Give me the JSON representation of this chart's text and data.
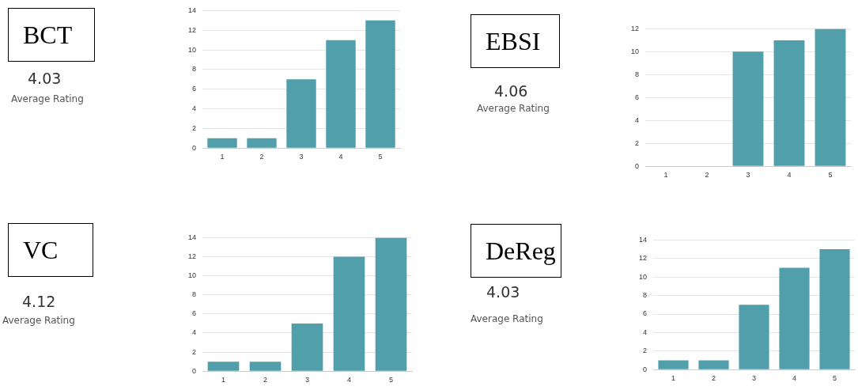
{
  "chart_data": [
    {
      "type": "bar",
      "title": "BCT",
      "annotations": [
        "4.03",
        "Average Rating"
      ],
      "categories": [
        "1",
        "2",
        "3",
        "4",
        "5"
      ],
      "values": [
        1,
        1,
        7,
        11,
        13
      ],
      "color": "#519fab",
      "ylim": [
        0,
        14
      ],
      "yticks": [
        0,
        2,
        4,
        6,
        8,
        10,
        12,
        14
      ],
      "grid": "y"
    },
    {
      "type": "bar",
      "title": "EBSI",
      "annotations": [
        "4.06",
        "Average Rating"
      ],
      "categories": [
        "1",
        "2",
        "3",
        "4",
        "5"
      ],
      "values": [
        0,
        0,
        10,
        11,
        12
      ],
      "color": "#519fab",
      "ylim": [
        0,
        12
      ],
      "yticks": [
        0,
        2,
        4,
        6,
        8,
        10,
        12
      ],
      "grid": "y"
    },
    {
      "type": "bar",
      "title": "VC",
      "annotations": [
        "4.12",
        "Average Rating"
      ],
      "categories": [
        "1",
        "2",
        "3",
        "4",
        "5"
      ],
      "values": [
        1,
        1,
        5,
        12,
        14
      ],
      "color": "#519fab",
      "ylim": [
        0,
        14
      ],
      "yticks": [
        0,
        2,
        4,
        6,
        8,
        10,
        12,
        14
      ],
      "grid": "y"
    },
    {
      "type": "bar",
      "title": "DeReg",
      "annotations": [
        "4.03",
        "Average Rating"
      ],
      "categories": [
        "1",
        "2",
        "3",
        "4",
        "5"
      ],
      "values": [
        1,
        1,
        7,
        11,
        13
      ],
      "color": "#519fab",
      "ylim": [
        0,
        14
      ],
      "yticks": [
        0,
        2,
        4,
        6,
        8,
        10,
        12,
        14
      ],
      "grid": "y"
    }
  ]
}
